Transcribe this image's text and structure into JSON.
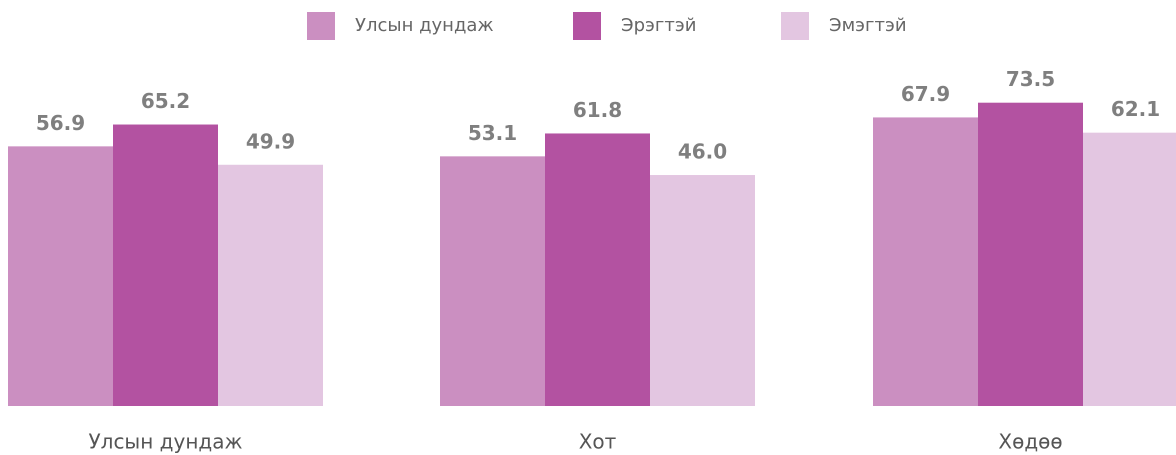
{
  "chart_data": {
    "type": "bar",
    "categories": [
      "Улсын дундаж",
      "Хот",
      "Хөдөө"
    ],
    "series": [
      {
        "name": "Улсын дундаж",
        "color": "#cb8fc1",
        "values": [
          56.9,
          53.1,
          67.9
        ],
        "value_labels": [
          "56.9",
          "53.1",
          "67.9"
        ]
      },
      {
        "name": "Эрэгтэй",
        "color": "#b352a1",
        "values": [
          65.2,
          61.8,
          73.5
        ],
        "value_labels": [
          "65.2",
          "61.8",
          "73.5"
        ]
      },
      {
        "name": "Эмэгтэй",
        "color": "#e3c6e1",
        "values": [
          49.9,
          46.0,
          62.1
        ],
        "value_labels": [
          "49.9",
          "46.0",
          "62.1"
        ]
      }
    ],
    "legend": "top"
  }
}
